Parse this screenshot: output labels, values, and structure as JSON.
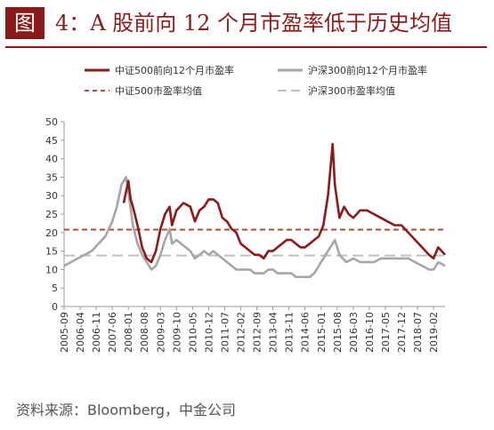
{
  "figure": {
    "badge": "图",
    "title": "4：A 股前向 12 个月市盈率低于历史均值"
  },
  "source": "资料来源：Bloomberg，中金公司",
  "chart_data": {
    "type": "line",
    "ylim": [
      0,
      50
    ],
    "yticks": [
      0,
      5,
      10,
      15,
      20,
      25,
      30,
      35,
      40,
      45,
      50
    ],
    "xlim": [
      "2005-09",
      "2019-07"
    ],
    "xticks": [
      "2005-09",
      "2006-04",
      "2006-11",
      "2007-06",
      "2008-01",
      "2008-08",
      "2009-03",
      "2009-10",
      "2010-05",
      "2010-12",
      "2011-07",
      "2012-02",
      "2012-09",
      "2013-04",
      "2013-11",
      "2014-06",
      "2015-01",
      "2015-08",
      "2016-03",
      "2016-10",
      "2017-05",
      "2017-12",
      "2018-07",
      "2019-02"
    ],
    "legend": [
      "中证500前向12个月市盈率",
      "沪深300前向12个月市盈率",
      "中证500市盈率均值",
      "沪深300市盈率均值"
    ],
    "colors": {
      "csi500": "#8b1a1a",
      "hs300": "#a6a6a6",
      "csi500_mean": "#b04a3a",
      "hs300_mean": "#c0c0c0"
    },
    "series": [
      {
        "name": "中证500前向12个月市盈率",
        "x": [
          "2007-11",
          "2007-12",
          "2008-01",
          "2008-02",
          "2008-03",
          "2008-05",
          "2008-07",
          "2008-09",
          "2008-11",
          "2009-01",
          "2009-03",
          "2009-05",
          "2009-07",
          "2009-08",
          "2009-10",
          "2010-01",
          "2010-04",
          "2010-06",
          "2010-08",
          "2010-10",
          "2010-12",
          "2011-02",
          "2011-04",
          "2011-06",
          "2011-08",
          "2011-10",
          "2011-12",
          "2012-02",
          "2012-04",
          "2012-06",
          "2012-08",
          "2012-10",
          "2012-12",
          "2013-02",
          "2013-04",
          "2013-06",
          "2013-08",
          "2013-10",
          "2013-12",
          "2014-02",
          "2014-04",
          "2014-06",
          "2014-08",
          "2014-10",
          "2014-12",
          "2015-02",
          "2015-04",
          "2015-06",
          "2015-07",
          "2015-09",
          "2015-11",
          "2016-01",
          "2016-03",
          "2016-06",
          "2016-09",
          "2016-12",
          "2017-03",
          "2017-06",
          "2017-09",
          "2017-12",
          "2018-03",
          "2018-06",
          "2018-09",
          "2018-12",
          "2019-02",
          "2019-04",
          "2019-07"
        ],
        "values": [
          28,
          31,
          34,
          29,
          27,
          22,
          16,
          13,
          12,
          15,
          21,
          25,
          27,
          22,
          26,
          28,
          27,
          23,
          26,
          27,
          29,
          29,
          28,
          24,
          23,
          21,
          20,
          17,
          16,
          15,
          14,
          14,
          13,
          15,
          15,
          16,
          17,
          18,
          18,
          17,
          16,
          16,
          17,
          18,
          19,
          22,
          30,
          44,
          33,
          24,
          27,
          25,
          24,
          26,
          26,
          25,
          24,
          23,
          22,
          22,
          20,
          18,
          16,
          14,
          13,
          16,
          14
        ]
      },
      {
        "name": "沪深300前向12个月市盈率",
        "x": [
          "2005-09",
          "2005-12",
          "2006-03",
          "2006-06",
          "2006-09",
          "2006-12",
          "2007-03",
          "2007-06",
          "2007-08",
          "2007-10",
          "2007-12",
          "2008-01",
          "2008-03",
          "2008-05",
          "2008-07",
          "2008-09",
          "2008-11",
          "2009-01",
          "2009-03",
          "2009-05",
          "2009-07",
          "2009-08",
          "2009-10",
          "2009-12",
          "2010-02",
          "2010-04",
          "2010-06",
          "2010-08",
          "2010-10",
          "2010-12",
          "2011-02",
          "2011-04",
          "2011-06",
          "2011-08",
          "2011-10",
          "2011-12",
          "2012-02",
          "2012-04",
          "2012-06",
          "2012-08",
          "2012-10",
          "2012-12",
          "2013-02",
          "2013-04",
          "2013-06",
          "2013-08",
          "2013-10",
          "2013-12",
          "2014-02",
          "2014-04",
          "2014-06",
          "2014-08",
          "2014-10",
          "2014-12",
          "2015-02",
          "2015-04",
          "2015-06",
          "2015-07",
          "2015-09",
          "2015-12",
          "2016-03",
          "2016-06",
          "2016-09",
          "2016-12",
          "2017-03",
          "2017-06",
          "2017-09",
          "2017-12",
          "2018-03",
          "2018-06",
          "2018-09",
          "2018-12",
          "2019-02",
          "2019-04",
          "2019-07"
        ],
        "values": [
          11,
          12,
          13,
          14,
          15,
          17,
          19,
          23,
          27,
          33,
          35,
          31,
          22,
          17,
          14,
          12,
          10,
          11,
          14,
          18,
          21,
          17,
          18,
          17,
          16,
          15,
          13,
          14,
          15,
          14,
          15,
          14,
          13,
          12,
          11,
          10,
          10,
          10,
          10,
          9,
          9,
          9,
          10,
          10,
          9,
          9,
          9,
          9,
          8,
          8,
          8,
          8,
          9,
          11,
          13,
          15,
          17,
          18,
          14,
          12,
          13,
          12,
          12,
          12,
          13,
          13,
          13,
          13,
          13,
          12,
          11,
          10,
          10,
          12,
          11
        ]
      }
    ],
    "reference_lines": [
      {
        "name": "中证500市盈率均值",
        "value": 20.8
      },
      {
        "name": "沪深300市盈率均值",
        "value": 13.8
      }
    ]
  }
}
